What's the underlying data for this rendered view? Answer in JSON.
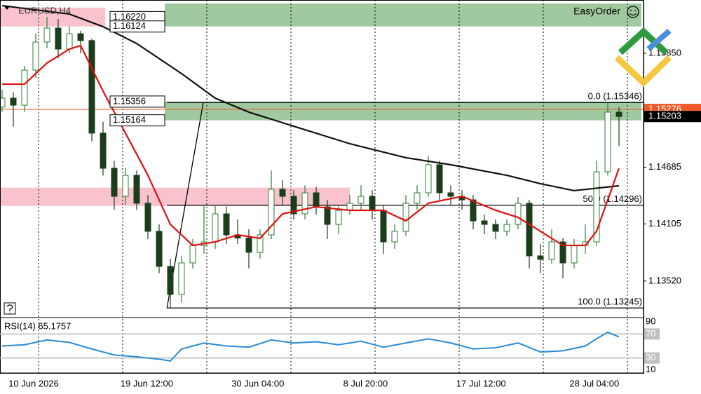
{
  "chart_data": {
    "type": "candlestick",
    "title": "EURUSD,H4",
    "badge": "EasyOrder",
    "ylim": [
      1.13154,
      1.16359
    ],
    "yticks": [
      {
        "value": 1.1585,
        "label": "1.15850"
      },
      1.14685,
      1.14105,
      {
        "value": 1.1352,
        "label": "1.13520"
      }
    ],
    "x_labels": [
      {
        "value": 2.8,
        "label": "10 Jun 2026"
      },
      {
        "value": 12.9,
        "label": "19 Jun 12:00"
      },
      {
        "value": 22.8,
        "label": "30 Jun 04:00"
      },
      {
        "value": 32.4,
        "label": "8 Jul 20:00"
      },
      {
        "value": 42.7,
        "label": "17 Jul 12:00"
      },
      {
        "value": 52.8,
        "label": "28 Jul 04:00"
      }
    ],
    "up_color": "#2e7d32",
    "down_color": "#1b3d1b",
    "candles": [
      [
        1.153,
        1.1548,
        1.1525,
        1.15391
      ],
      [
        1.15391,
        1.1545,
        1.151,
        1.15319
      ],
      [
        1.15319,
        1.1572,
        1.1525,
        1.15678
      ],
      [
        1.15678,
        1.1605,
        1.156,
        1.15965
      ],
      [
        1.15965,
        1.1622,
        1.159,
        1.16108
      ],
      [
        1.16108,
        1.162,
        1.158,
        1.15893
      ],
      [
        1.15893,
        1.16124,
        1.1585,
        1.1605
      ],
      [
        1.1605,
        1.1608,
        1.1585,
        1.1598
      ],
      [
        1.1598,
        1.16,
        1.1495,
        1.15033
      ],
      [
        1.15033,
        1.1515,
        1.146,
        1.14674
      ],
      [
        1.14674,
        1.1475,
        1.1425,
        1.14387
      ],
      [
        1.14387,
        1.1468,
        1.143,
        1.14602
      ],
      [
        1.14602,
        1.1465,
        1.1425,
        1.14316
      ],
      [
        1.14316,
        1.144,
        1.1395,
        1.14029
      ],
      [
        1.14029,
        1.141,
        1.136,
        1.1367
      ],
      [
        1.1367,
        1.1375,
        1.13245,
        1.13383
      ],
      [
        1.13383,
        1.1378,
        1.133,
        1.13706
      ],
      [
        1.13706,
        1.1395,
        1.1365,
        1.13885
      ],
      [
        1.13885,
        1.143,
        1.138,
        1.13921
      ],
      [
        1.13921,
        1.143,
        1.1385,
        1.14208
      ],
      [
        1.14208,
        1.1428,
        1.139,
        1.13993
      ],
      [
        1.13993,
        1.1415,
        1.139,
        1.1396
      ],
      [
        1.1396,
        1.1405,
        1.1365,
        1.13814
      ],
      [
        1.13814,
        1.1405,
        1.1375,
        1.13993
      ],
      [
        1.13993,
        1.1465,
        1.1395,
        1.14459
      ],
      [
        1.14459,
        1.1455,
        1.143,
        1.14387
      ],
      [
        1.14387,
        1.1445,
        1.1415,
        1.14208
      ],
      [
        1.14208,
        1.145,
        1.1415,
        1.14423
      ],
      [
        1.14423,
        1.1448,
        1.142,
        1.1428
      ],
      [
        1.1428,
        1.1435,
        1.1395,
        1.141
      ],
      [
        1.141,
        1.143,
        1.14,
        1.14244
      ],
      [
        1.14244,
        1.144,
        1.142,
        1.14316
      ],
      [
        1.14316,
        1.145,
        1.1425,
        1.14387
      ],
      [
        1.14387,
        1.1445,
        1.1415,
        1.14244
      ],
      [
        1.14244,
        1.143,
        1.138,
        1.13921
      ],
      [
        1.13921,
        1.141,
        1.1385,
        1.14029
      ],
      [
        1.14029,
        1.144,
        1.1398,
        1.14316
      ],
      [
        1.14316,
        1.145,
        1.1425,
        1.14423
      ],
      [
        1.14423,
        1.148,
        1.1438,
        1.1471
      ],
      [
        1.1471,
        1.1475,
        1.1435,
        1.14423
      ],
      [
        1.14423,
        1.145,
        1.143,
        1.14387
      ],
      [
        1.14387,
        1.1445,
        1.1425,
        1.14351
      ],
      [
        1.14351,
        1.144,
        1.1405,
        1.14136
      ],
      [
        1.14136,
        1.142,
        1.14,
        1.141
      ],
      [
        1.141,
        1.1415,
        1.1395,
        1.14029
      ],
      [
        1.14029,
        1.1415,
        1.1398,
        1.141
      ],
      [
        1.141,
        1.1438,
        1.1405,
        1.14316
      ],
      [
        1.14316,
        1.1435,
        1.1365,
        1.13778
      ],
      [
        1.13778,
        1.139,
        1.136,
        1.13742
      ],
      [
        1.13742,
        1.1405,
        1.137,
        1.13921
      ],
      [
        1.13921,
        1.1396,
        1.1355,
        1.13706
      ],
      [
        1.13706,
        1.1395,
        1.1365,
        1.13885
      ],
      [
        1.13885,
        1.141,
        1.138,
        1.13921
      ],
      [
        1.13921,
        1.1475,
        1.1388,
        1.14638
      ],
      [
        1.14638,
        1.15346,
        1.146,
        1.15248
      ],
      [
        1.15248,
        1.153,
        1.149,
        1.15203
      ]
    ],
    "lines": [
      {
        "color": "#111111",
        "x": [
          0,
          6,
          9,
          12,
          16,
          19,
          22,
          26,
          31,
          36,
          40,
          45,
          48,
          51,
          55
        ],
        "values": [
          1.16337,
          1.16251,
          1.16122,
          1.1595,
          1.15642,
          1.15391,
          1.15248,
          1.15104,
          1.14925,
          1.14782,
          1.1471,
          1.14602,
          1.14516,
          1.14445,
          1.14495
        ]
      },
      {
        "color": "#e01010",
        "x": [
          0,
          2,
          4,
          6,
          7,
          9,
          11,
          13,
          15,
          17,
          19,
          21,
          23,
          25,
          28,
          31,
          34,
          36,
          38,
          41,
          44,
          46,
          48,
          50,
          52,
          53,
          55
        ],
        "values": [
          1.15534,
          1.15534,
          1.1575,
          1.15893,
          1.15929,
          1.15463,
          1.15033,
          1.14602,
          1.141,
          1.13885,
          1.13921,
          1.13993,
          1.13957,
          1.14208,
          1.1428,
          1.14244,
          1.14244,
          1.14136,
          1.14316,
          1.14387,
          1.14244,
          1.14172,
          1.14029,
          1.13885,
          1.13885,
          1.14029,
          1.14674
        ]
      }
    ],
    "zones": [
      {
        "color": "#8fbf8f",
        "range": [
          1.16124,
          1.16359
        ],
        "x": [
          14.5,
          57
        ]
      },
      {
        "color": "#f7b8c4",
        "range": [
          1.16124,
          1.16317
        ],
        "x": [
          -0.2,
          9.2
        ]
      },
      {
        "color": "#8fbf8f",
        "range": [
          1.15164,
          1.15356
        ],
        "x": [
          14.5,
          57
        ]
      },
      {
        "color": "#f7b8c4",
        "range": [
          1.14289,
          1.14476
        ],
        "x": [
          -0.2,
          31
        ]
      }
    ],
    "price_boxes": [
      {
        "value": 1.1622,
        "label": "1.16220"
      },
      {
        "value": 1.16124,
        "label": "1.16124"
      },
      {
        "value": 1.15356,
        "label": "1.15356"
      },
      {
        "value": 1.15164,
        "label": "1.15164"
      }
    ],
    "fib_levels": [
      {
        "value": 1.15346,
        "label": "0.0 (1.15346)"
      },
      {
        "value": 1.14296,
        "label": "50.0 (1.14296)"
      },
      {
        "value": 1.13245,
        "label": "100.0 (1.13245)"
      }
    ],
    "price_tags": [
      {
        "value": 1.15276,
        "label": "1.15276",
        "color": "#f05a28"
      },
      {
        "value": 1.15203,
        "label": "1.15203",
        "color": "#000000"
      }
    ],
    "rsi": {
      "title": "RSI(14) 65.1757",
      "color": "#2a8bd6",
      "ylim": [
        5,
        95
      ],
      "yticks": [
        90,
        70,
        30,
        10
      ],
      "levels": [
        70,
        30
      ],
      "x": [
        0,
        2,
        4,
        6,
        8,
        10,
        12,
        14,
        15,
        16,
        18,
        20,
        22,
        24,
        26,
        28,
        30,
        32,
        34,
        36,
        38,
        40,
        42,
        44,
        46,
        48,
        50,
        52,
        53,
        54,
        55
      ],
      "values": [
        50,
        52,
        60,
        56,
        45,
        35,
        32,
        28,
        25,
        45,
        55,
        50,
        48,
        60,
        55,
        57,
        52,
        58,
        48,
        55,
        62,
        55,
        45,
        47,
        55,
        40,
        42,
        50,
        62,
        73,
        65.1757
      ]
    }
  }
}
